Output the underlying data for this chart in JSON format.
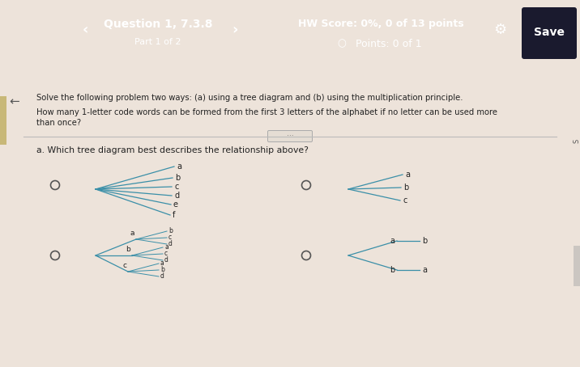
{
  "bg_color": "#ede3da",
  "header_color": "#3d8fa8",
  "body_bg": "#f0e8df",
  "title_line1": "Question 1, 7.3.8",
  "title_line2": "Part 1 of 2",
  "hw_score_bold": "HW Score: 0%, 0 of 13 points",
  "points_label": "Points: 0 of 1",
  "problem_text1": "Solve the following problem two ways: (a) using a tree diagram and (b) using the multiplication principle.",
  "problem_text2a": "How many 1-letter code words can be formed from the first 3 letters of the alphabet if no letter can be used more",
  "problem_text2b": "than once?",
  "question_label": "a. Which tree diagram best describes the relationship above?",
  "tree_color": "#3a8fa8",
  "text_color": "#222222",
  "radio_color": "#555555",
  "save_btn_color": "#1a1a2e",
  "divider_color": "#bbbbbb"
}
